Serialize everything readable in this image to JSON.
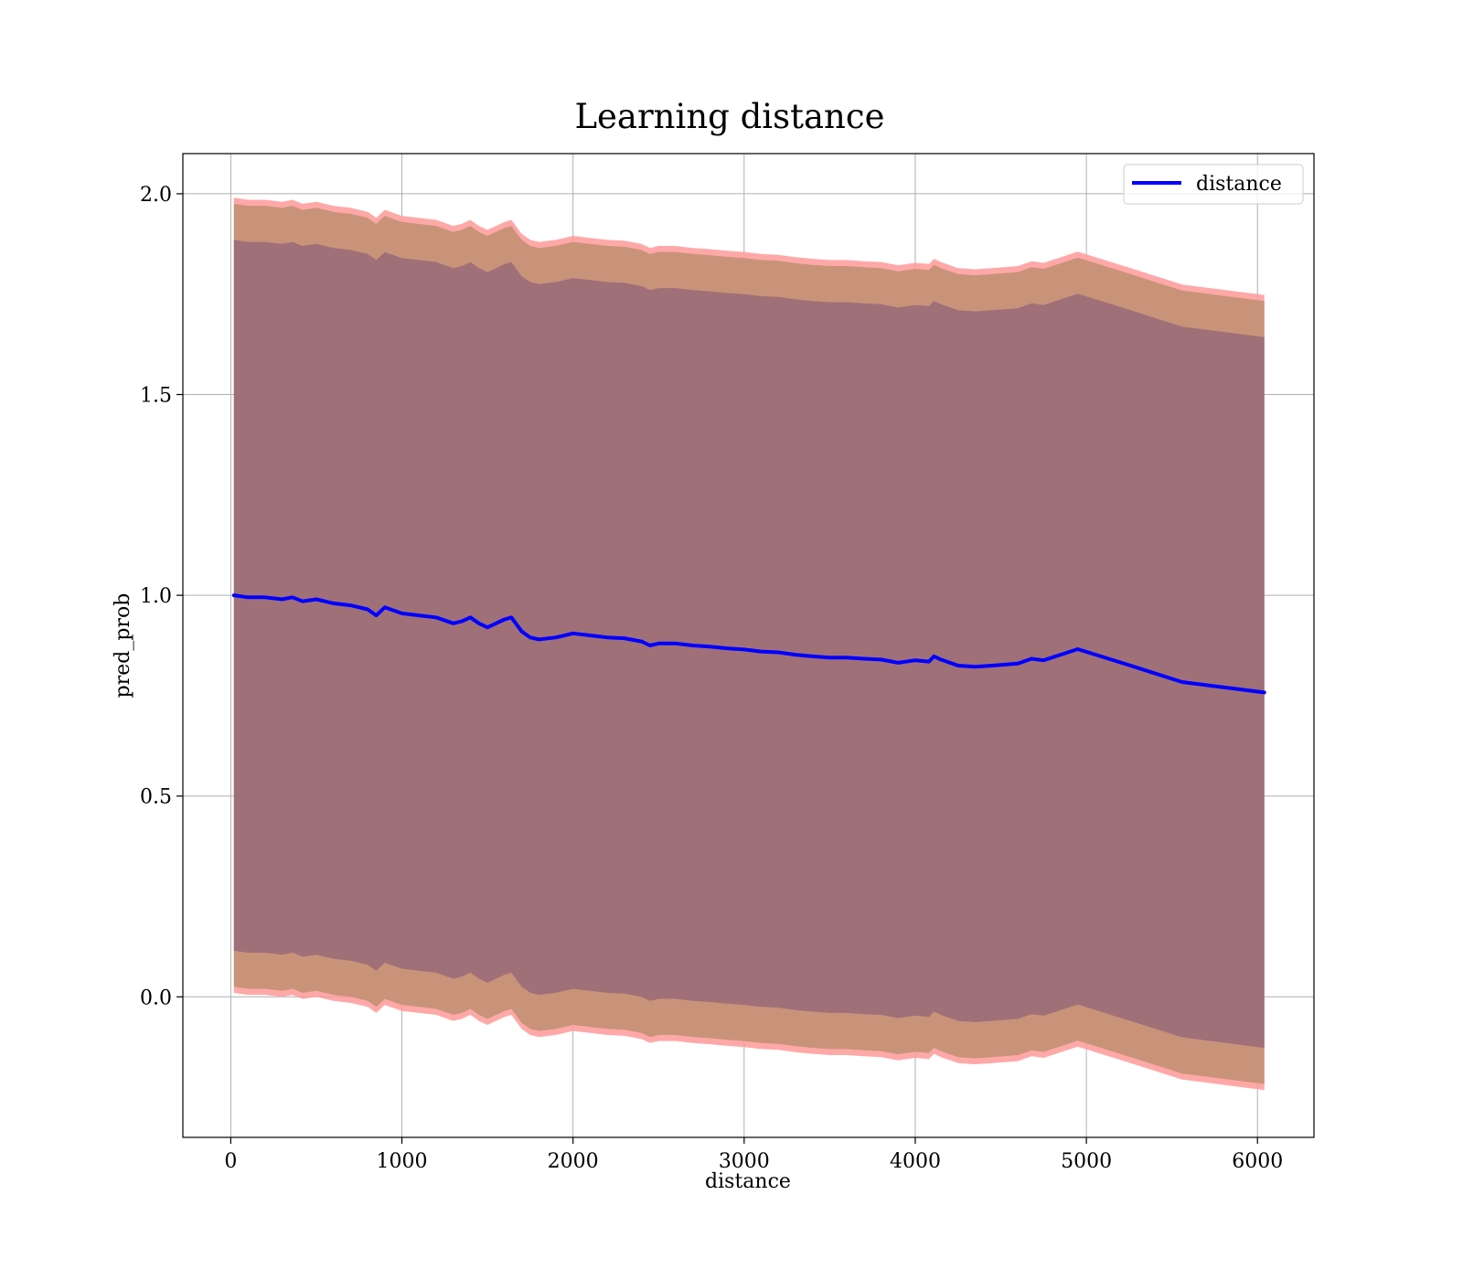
{
  "chart_data": {
    "type": "line",
    "title": "Learning distance",
    "xlabel": "distance",
    "ylabel": "pred_prob",
    "xlim": [
      -280,
      6330
    ],
    "ylim": [
      -0.35,
      2.1
    ],
    "xticks": [
      0,
      1000,
      2000,
      3000,
      4000,
      5000,
      6000
    ],
    "xtick_labels": [
      "0",
      "1000",
      "2000",
      "3000",
      "4000",
      "5000",
      "6000"
    ],
    "yticks": [
      0.0,
      0.5,
      1.0,
      1.5,
      2.0
    ],
    "ytick_labels": [
      "0.0",
      "0.5",
      "1.0",
      "1.5",
      "2.0"
    ],
    "grid": true,
    "legend": {
      "position": "top-right",
      "entries": [
        "distance"
      ]
    },
    "colors": {
      "line": "#0000ff",
      "band_outer": "#ff9999",
      "band_middle": "#c9937a",
      "band_inner": "#a07078"
    },
    "x": [
      18,
      100,
      200,
      300,
      360,
      420,
      500,
      600,
      700,
      800,
      850,
      900,
      1000,
      1100,
      1200,
      1300,
      1350,
      1400,
      1450,
      1500,
      1550,
      1600,
      1640,
      1700,
      1750,
      1800,
      1900,
      2000,
      2100,
      2200,
      2300,
      2400,
      2450,
      2500,
      2600,
      2700,
      2800,
      2900,
      3000,
      3100,
      3200,
      3300,
      3400,
      3500,
      3600,
      3700,
      3800,
      3900,
      4000,
      4080,
      4110,
      4150,
      4250,
      4350,
      4450,
      4600,
      4680,
      4750,
      4950,
      5250,
      5560,
      6040
    ],
    "series": [
      {
        "name": "distance",
        "values": [
          1.0,
          0.995,
          0.995,
          0.99,
          0.995,
          0.985,
          0.99,
          0.98,
          0.975,
          0.965,
          0.95,
          0.97,
          0.955,
          0.95,
          0.945,
          0.93,
          0.935,
          0.945,
          0.93,
          0.92,
          0.93,
          0.94,
          0.945,
          0.91,
          0.895,
          0.89,
          0.895,
          0.905,
          0.9,
          0.895,
          0.893,
          0.885,
          0.875,
          0.88,
          0.88,
          0.875,
          0.872,
          0.868,
          0.865,
          0.86,
          0.858,
          0.852,
          0.848,
          0.845,
          0.845,
          0.842,
          0.84,
          0.832,
          0.838,
          0.835,
          0.848,
          0.84,
          0.825,
          0.822,
          0.825,
          0.83,
          0.842,
          0.838,
          0.866,
          0.826,
          0.784,
          0.758
        ]
      }
    ],
    "bands": [
      {
        "name": "outer",
        "half_width": 0.99
      },
      {
        "name": "middle",
        "half_width": 0.975
      },
      {
        "name": "inner",
        "half_width": 0.885
      }
    ]
  }
}
